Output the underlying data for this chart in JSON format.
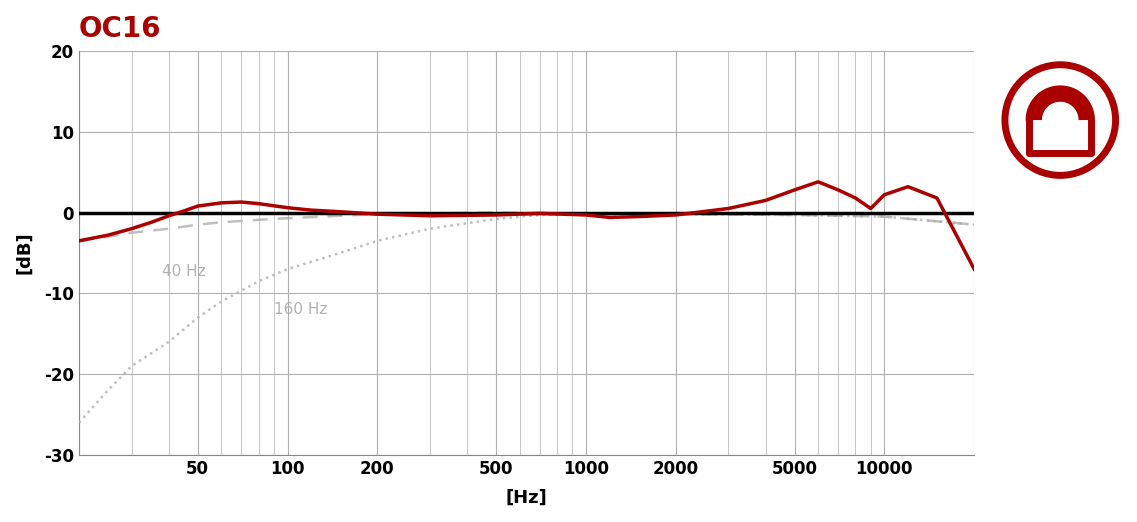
{
  "title": "OC16",
  "title_color": "#aa0000",
  "xlabel": "[Hz]",
  "ylabel": "[dB]",
  "xlim": [
    20,
    20000
  ],
  "ylim": [
    -30,
    20
  ],
  "yticks": [
    -30,
    -20,
    -10,
    0,
    10,
    20
  ],
  "xtick_labels": [
    "",
    "50",
    "100",
    "200",
    "500",
    "1000",
    "2000",
    "5000",
    "10000",
    ""
  ],
  "xtick_positions": [
    20,
    50,
    100,
    200,
    500,
    1000,
    2000,
    5000,
    10000,
    20000
  ],
  "background_color": "#ffffff",
  "grid_color": "#b0b0b0",
  "freq_response_color": "#aa0000",
  "zero_line_color": "#000000",
  "rolloff_color": "#aaaaaa",
  "label_40hz": "40 Hz",
  "label_160hz": "160 Hz",
  "freq_response": {
    "freq": [
      20,
      25,
      30,
      35,
      40,
      45,
      50,
      60,
      70,
      80,
      100,
      120,
      150,
      200,
      300,
      500,
      700,
      1000,
      1200,
      1500,
      2000,
      3000,
      4000,
      5000,
      6000,
      7000,
      8000,
      9000,
      10000,
      12000,
      15000,
      20000
    ],
    "db": [
      -3.5,
      -2.8,
      -2.0,
      -1.2,
      -0.4,
      0.2,
      0.8,
      1.2,
      1.3,
      1.1,
      0.6,
      0.3,
      0.1,
      -0.2,
      -0.4,
      -0.3,
      -0.1,
      -0.3,
      -0.6,
      -0.5,
      -0.3,
      0.5,
      1.5,
      2.8,
      3.8,
      2.8,
      1.8,
      0.5,
      2.2,
      3.2,
      1.8,
      -7.0
    ]
  },
  "rolloff_40hz": {
    "freq": [
      20,
      25,
      30,
      40,
      50,
      60,
      80,
      100,
      150,
      200,
      300,
      500,
      700,
      1000,
      2000,
      5000,
      10000,
      20000
    ],
    "db": [
      -3.5,
      -3.0,
      -2.5,
      -2.0,
      -1.5,
      -1.2,
      -0.9,
      -0.7,
      -0.4,
      -0.2,
      -0.1,
      0.0,
      -0.1,
      -0.1,
      -0.2,
      -0.3,
      -0.5,
      -1.5
    ]
  },
  "rolloff_160hz": {
    "freq": [
      20,
      25,
      30,
      40,
      50,
      60,
      80,
      100,
      150,
      200,
      300,
      500,
      700,
      1000,
      2000,
      5000,
      10000,
      20000
    ],
    "db": [
      -26,
      -22,
      -19,
      -16,
      -13,
      -11,
      -8.5,
      -7,
      -5,
      -3.5,
      -2.0,
      -0.8,
      -0.3,
      -0.1,
      -0.2,
      -0.3,
      -0.5,
      -1.5
    ]
  },
  "label_40hz_freq": 38,
  "label_40hz_db": -7.8,
  "label_160hz_freq": 90,
  "label_160hz_db": -12.5
}
